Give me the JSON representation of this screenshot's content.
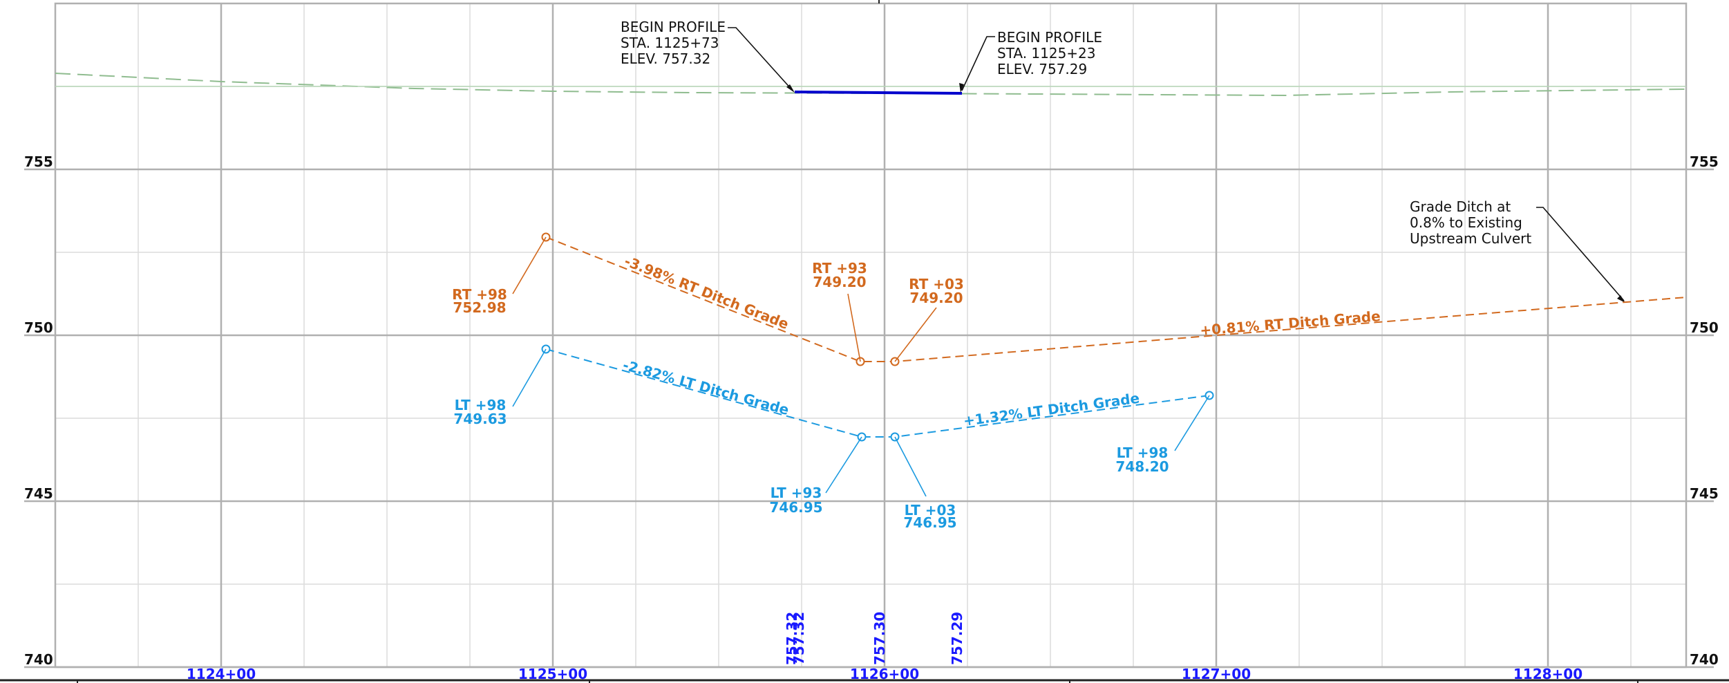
{
  "elevation_labels": [
    "755",
    "750",
    "745",
    "740"
  ],
  "station_labels": [
    "1124+00",
    "1125+00",
    "1126+00",
    "1127+00",
    "1128+00"
  ],
  "bottom_elevations": [
    "757.32",
    "757.32",
    "757.30",
    "757.29"
  ],
  "profile_notes": {
    "left": {
      "line1": "BEGIN PROFILE",
      "line2": "STA. 1125+73",
      "line3": "ELEV. 757.32"
    },
    "right": {
      "line1": "BEGIN PROFILE",
      "line2": "STA. 1125+23",
      "line3": "ELEV. 757.29"
    }
  },
  "culvert_note": {
    "line1": "Grade Ditch at",
    "line2": "0.8% to Existing",
    "line3": "Upstream Culvert"
  },
  "rt_points": {
    "p98_left": {
      "line1": "RT +98",
      "line2": "752.98"
    },
    "p93": {
      "line1": "RT +93",
      "line2": "749.20"
    },
    "p03": {
      "line1": "RT +03",
      "line2": "749.20"
    }
  },
  "lt_points": {
    "p98_left": {
      "line1": "LT +98",
      "line2": "749.63"
    },
    "p93": {
      "line1": "LT +93",
      "line2": "746.95"
    },
    "p03": {
      "line1": "LT +03",
      "line2": "746.95"
    },
    "p98_right": {
      "line1": "LT +98",
      "line2": "748.20"
    }
  },
  "grades": {
    "rt_down": "-3.98% RT Ditch Grade",
    "rt_up": "+0.81% RT Ditch Grade",
    "lt_down": "-2.82% LT Ditch Grade",
    "lt_up": "+1.32% LT Ditch Grade"
  },
  "colors": {
    "rt": "#d2691e",
    "lt": "#1b9ae0",
    "profile": "#0000cc",
    "existing": "#8fbc8f",
    "grid_major": "#b0b0b0",
    "grid_minor": "#dcdcdc"
  }
}
